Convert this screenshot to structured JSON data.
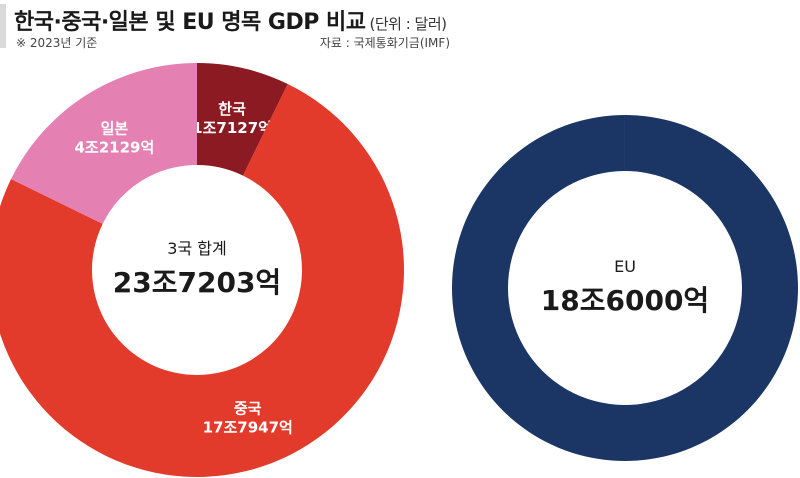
{
  "header": {
    "title": "한국·중국·일본 및 EU 명목 GDP 비교",
    "unit": "(단위 : 달러)",
    "note": "※ 2023년 기준",
    "source": "자료 : 국제통화기금(IMF)"
  },
  "chart_data": [
    {
      "type": "pie",
      "categories": [
        "한국",
        "중국",
        "일본"
      ],
      "values": [
        17127,
        177947,
        42129
      ],
      "value_labels": [
        "1조7127억",
        "17조7947억",
        "4조2129억"
      ],
      "colors": [
        "#8b1a22",
        "#e23a2b",
        "#e580b3"
      ],
      "center_title": "3국 합계",
      "center_value": "23조7203억"
    },
    {
      "type": "pie",
      "categories": [
        "EU"
      ],
      "values": [
        186000
      ],
      "value_labels": [
        "18조6000억"
      ],
      "colors": [
        "#1b3664"
      ],
      "center_title": "EU",
      "center_value": "18조6000억"
    }
  ]
}
